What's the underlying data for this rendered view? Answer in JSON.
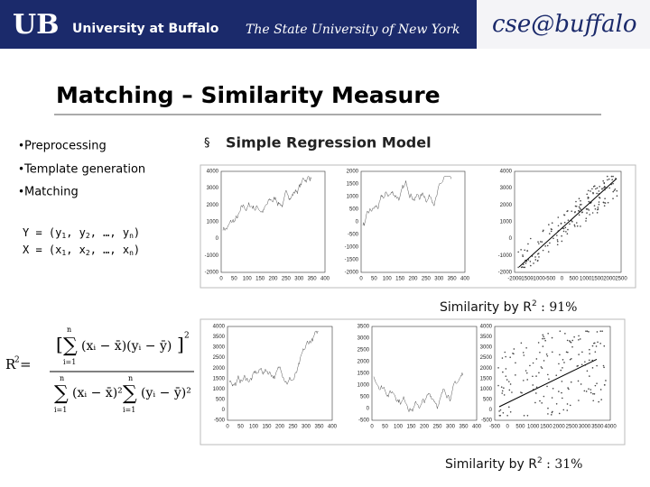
{
  "header": {
    "logo": "UB",
    "university": "University at Buffalo",
    "tagline": "The State University of New York",
    "dept": "cse@buffalo"
  },
  "title": "Matching – Similarity Measure",
  "bullets": [
    "Preprocessing",
    "Template generation",
    "Matching"
  ],
  "section": {
    "marker": "§",
    "text": "Simple Regression Model"
  },
  "vectors": [
    [
      "Y = (y",
      "1",
      ", y",
      "2",
      ", …, y",
      "n",
      ")"
    ],
    [
      "X = (x",
      "1",
      ", x",
      "2",
      ", …, x",
      "n",
      ")"
    ]
  ],
  "formula": {
    "lhs": "R",
    "lhs_sup": "2",
    "eq": "=",
    "open": "[",
    "sum": "∑",
    "upper": "n",
    "lower": "i=1",
    "num_body": "(xᵢ − x̄)(yᵢ − ȳ)",
    "close": "]",
    "sq": "2",
    "den_x": "(xᵢ − x̄)²",
    "den_y": "(yᵢ − ȳ)²"
  },
  "similarities": [
    {
      "prefix": "Similarity by R",
      "sup": "2",
      "suffix": " : 91%"
    },
    {
      "prefix": "Similarity by R",
      "sup": "2",
      "suffix": " : 31%"
    }
  ],
  "plots": [
    {
      "kind": "line",
      "yticks": [
        4000,
        3000,
        2000,
        1000,
        0,
        -1000,
        -2000
      ],
      "xticks": [
        0,
        50,
        100,
        150,
        200,
        250,
        300,
        350,
        400
      ]
    },
    {
      "kind": "line",
      "yticks": [
        2000,
        1500,
        1000,
        500,
        0,
        -500,
        -1000,
        -1500,
        -2000
      ],
      "xticks": [
        0,
        50,
        100,
        150,
        200,
        250,
        300,
        350,
        400
      ]
    },
    {
      "kind": "scatter",
      "yticks": [
        4000,
        3000,
        2000,
        1000,
        0,
        -1000,
        -2000
      ],
      "xticks": [
        -2000,
        -1500,
        -1000,
        -500,
        0,
        500,
        1000,
        1500,
        2000,
        2500
      ]
    },
    {
      "kind": "line",
      "yticks": [
        4000,
        3500,
        3000,
        2500,
        2000,
        1500,
        1000,
        500,
        0,
        -500
      ],
      "xticks": [
        0,
        50,
        100,
        150,
        200,
        250,
        300,
        350,
        400
      ]
    },
    {
      "kind": "line",
      "yticks": [
        3500,
        3000,
        2500,
        2000,
        1500,
        1000,
        500,
        0,
        -500
      ],
      "xticks": [
        0,
        50,
        100,
        150,
        200,
        250,
        300,
        350,
        400
      ]
    },
    {
      "kind": "scatter",
      "yticks": [
        4000,
        3500,
        3000,
        2500,
        2000,
        1500,
        1000,
        500,
        0,
        -500
      ],
      "xticks": [
        -500,
        0,
        500,
        1000,
        1500,
        2000,
        2500,
        3000,
        3500,
        4000
      ]
    }
  ]
}
